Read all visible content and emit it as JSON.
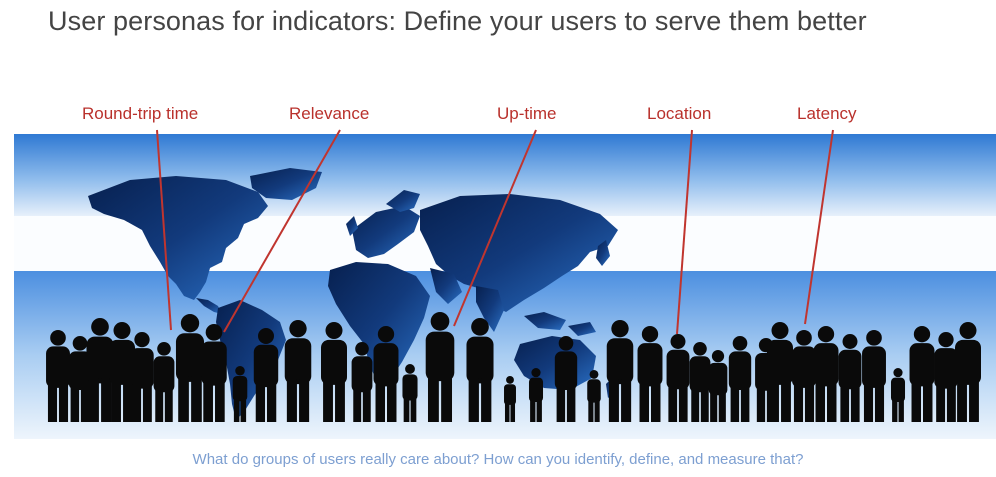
{
  "slide": {
    "title": "User personas for indicators: Define your users to serve them better",
    "caption": "What do groups of users really care about? How can you identify, define, and measure that?"
  },
  "labels": [
    {
      "id": "round-trip-time",
      "text": "Round-trip time"
    },
    {
      "id": "relevance",
      "text": "Relevance"
    },
    {
      "id": "up-time",
      "text": "Up-time"
    },
    {
      "id": "location",
      "text": "Location"
    },
    {
      "id": "latency",
      "text": "Latency"
    }
  ],
  "colors": {
    "title": "#444444",
    "label_text": "#b9312c",
    "pointer_line": "#c0352f",
    "caption": "#7d9fd1",
    "sky_top": "#2f79d3",
    "sky_bottom": "#e7f0fb",
    "map": "#0e2c63",
    "silhouette": "#0a0a0a"
  }
}
